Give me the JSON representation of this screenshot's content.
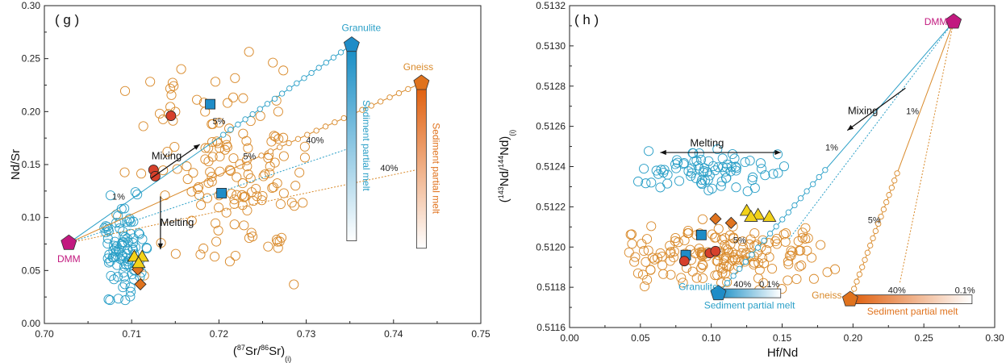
{
  "chart_data": [
    {
      "panel": "g",
      "type": "scatter",
      "panel_label": "( g )",
      "xlabel": "(87Sr/86Sr)(i)",
      "ylabel": "Nd/Sr",
      "xlim": [
        0.7,
        0.75
      ],
      "ylim": [
        0.0,
        0.3
      ],
      "x_ticks": [
        "0.70",
        "0.71",
        "0.72",
        "0.73",
        "0.74",
        "0.75"
      ],
      "y_ticks": [
        "0.00",
        "0.05",
        "0.10",
        "0.15",
        "0.20",
        "0.25",
        "0.30"
      ],
      "grid": false,
      "colors": {
        "granulite": "#2a9fc7",
        "gneiss": "#d98a2b",
        "dmm": "#c2197f",
        "orange_marker": "#e0731e",
        "red_marker": "#d6402b",
        "yellow_marker": "#f2d21a",
        "blue_square": "#1f8cc7"
      },
      "endmembers": [
        {
          "label": "DMM",
          "x": 0.7028,
          "y": 0.076
        },
        {
          "label": "Granulite",
          "x": 0.7352,
          "y": 0.263
        },
        {
          "label": "Gneiss",
          "x": 0.7432,
          "y": 0.227
        }
      ],
      "mixing_lines": [
        {
          "name": "granulite",
          "from": [
            0.7028,
            0.076
          ],
          "to": [
            0.7352,
            0.263
          ],
          "style": "solid"
        },
        {
          "name": "granulite",
          "from": [
            0.7028,
            0.076
          ],
          "to": [
            0.7352,
            0.166
          ],
          "style": "dotted"
        },
        {
          "name": "gneiss",
          "from": [
            0.7028,
            0.076
          ],
          "to": [
            0.7432,
            0.227
          ],
          "style": "solid"
        },
        {
          "name": "gneiss",
          "from": [
            0.7028,
            0.076
          ],
          "to": [
            0.7432,
            0.146
          ],
          "style": "dotted"
        }
      ],
      "melt_bars": [
        {
          "name": "granulite",
          "x": 0.7352,
          "y_top": 0.258,
          "y_bottom": 0.078,
          "label": "Sediment partial melt"
        },
        {
          "name": "gneiss",
          "x": 0.7432,
          "y_top": 0.222,
          "y_bottom": 0.071,
          "label": "Sediment partial melt"
        }
      ],
      "annotations": [
        {
          "text": "Mixing",
          "x": 0.714,
          "y": 0.155
        },
        {
          "text": "Melting",
          "x": 0.7152,
          "y": 0.092
        },
        {
          "text": "1%",
          "x": 0.7085,
          "y": 0.117
        },
        {
          "text": "5%",
          "x": 0.72,
          "y": 0.188
        },
        {
          "text": "5%",
          "x": 0.7235,
          "y": 0.155
        },
        {
          "text": "40%",
          "x": 0.731,
          "y": 0.17
        },
        {
          "text": "40%",
          "x": 0.7395,
          "y": 0.144
        }
      ],
      "samples": {
        "blue_squares": [
          [
            0.719,
            0.207
          ],
          [
            0.7203,
            0.123
          ]
        ],
        "red_circles": [
          [
            0.7145,
            0.196
          ],
          [
            0.7125,
            0.145
          ],
          [
            0.7127,
            0.139
          ]
        ],
        "orange_diamonds": [
          [
            0.7107,
            0.051
          ],
          [
            0.711,
            0.037
          ]
        ],
        "yellow_triangles": [
          [
            0.7103,
            0.063
          ],
          [
            0.7112,
            0.063
          ],
          [
            0.7108,
            0.057
          ]
        ]
      }
    },
    {
      "panel": "h",
      "type": "scatter",
      "panel_label": "( h )",
      "xlabel": "Hf/Nd",
      "ylabel": "(143Nd/144Nd)(i)",
      "xlim": [
        0.0,
        0.3
      ],
      "ylim": [
        0.5116,
        0.5132
      ],
      "x_ticks": [
        "0.00",
        "0.05",
        "0.10",
        "0.15",
        "0.20",
        "0.25",
        "0.30"
      ],
      "y_ticks": [
        "0.5116",
        "0.5118",
        "0.5120",
        "0.5122",
        "0.5124",
        "0.5126",
        "0.5128",
        "0.5130",
        "0.5132"
      ],
      "grid": false,
      "endmembers": [
        {
          "label": "DMM",
          "x": 0.271,
          "y": 0.51312
        },
        {
          "label": "Granulite",
          "x": 0.105,
          "y": 0.51177
        },
        {
          "label": "Gneiss",
          "x": 0.198,
          "y": 0.51174
        }
      ],
      "mixing_lines": [
        {
          "name": "granulite",
          "from": [
            0.271,
            0.51312
          ],
          "to": [
            0.105,
            0.51177
          ],
          "style": "solid"
        },
        {
          "name": "granulite",
          "from": [
            0.271,
            0.51312
          ],
          "to": [
            0.155,
            0.51204
          ],
          "style": "dotted"
        },
        {
          "name": "gneiss",
          "from": [
            0.271,
            0.51312
          ],
          "to": [
            0.198,
            0.51174
          ],
          "style": "solid"
        },
        {
          "name": "gneiss",
          "from": [
            0.271,
            0.51312
          ],
          "to": [
            0.233,
            0.51182
          ],
          "style": "dotted"
        }
      ],
      "melt_bars": [
        {
          "name": "granulite",
          "y": 0.51177,
          "x_left": 0.105,
          "x_right": 0.149,
          "label": "Sediment partial melt"
        },
        {
          "name": "gneiss",
          "y": 0.51174,
          "x_left": 0.2,
          "x_right": 0.284,
          "label": "Sediment partial melt"
        }
      ],
      "annotations": [
        {
          "text": "Mixing",
          "x": 0.207,
          "y": 0.51266
        },
        {
          "text": "Melting",
          "x": 0.097,
          "y": 0.5125
        },
        {
          "text": "1%",
          "x": 0.185,
          "y": 0.51248
        },
        {
          "text": "1%",
          "x": 0.242,
          "y": 0.51266
        },
        {
          "text": "5%",
          "x": 0.12,
          "y": 0.51202
        },
        {
          "text": "5%",
          "x": 0.215,
          "y": 0.51212
        },
        {
          "text": "40%",
          "x": 0.122,
          "y": 0.5118
        },
        {
          "text": "0.1%",
          "x": 0.141,
          "y": 0.5118
        },
        {
          "text": "40%",
          "x": 0.231,
          "y": 0.51177
        },
        {
          "text": "0.1%",
          "x": 0.279,
          "y": 0.51177
        }
      ],
      "samples": {
        "blue_squares": [
          [
            0.082,
            0.51196
          ],
          [
            0.093,
            0.51206
          ]
        ],
        "red_circles": [
          [
            0.081,
            0.51193
          ],
          [
            0.099,
            0.51197
          ],
          [
            0.103,
            0.51198
          ]
        ],
        "orange_diamonds": [
          [
            0.103,
            0.51214
          ],
          [
            0.114,
            0.51212
          ]
        ],
        "yellow_triangles": [
          [
            0.125,
            0.51218
          ],
          [
            0.133,
            0.51216
          ],
          [
            0.141,
            0.51215
          ],
          [
            0.128,
            0.51215
          ]
        ]
      }
    }
  ]
}
